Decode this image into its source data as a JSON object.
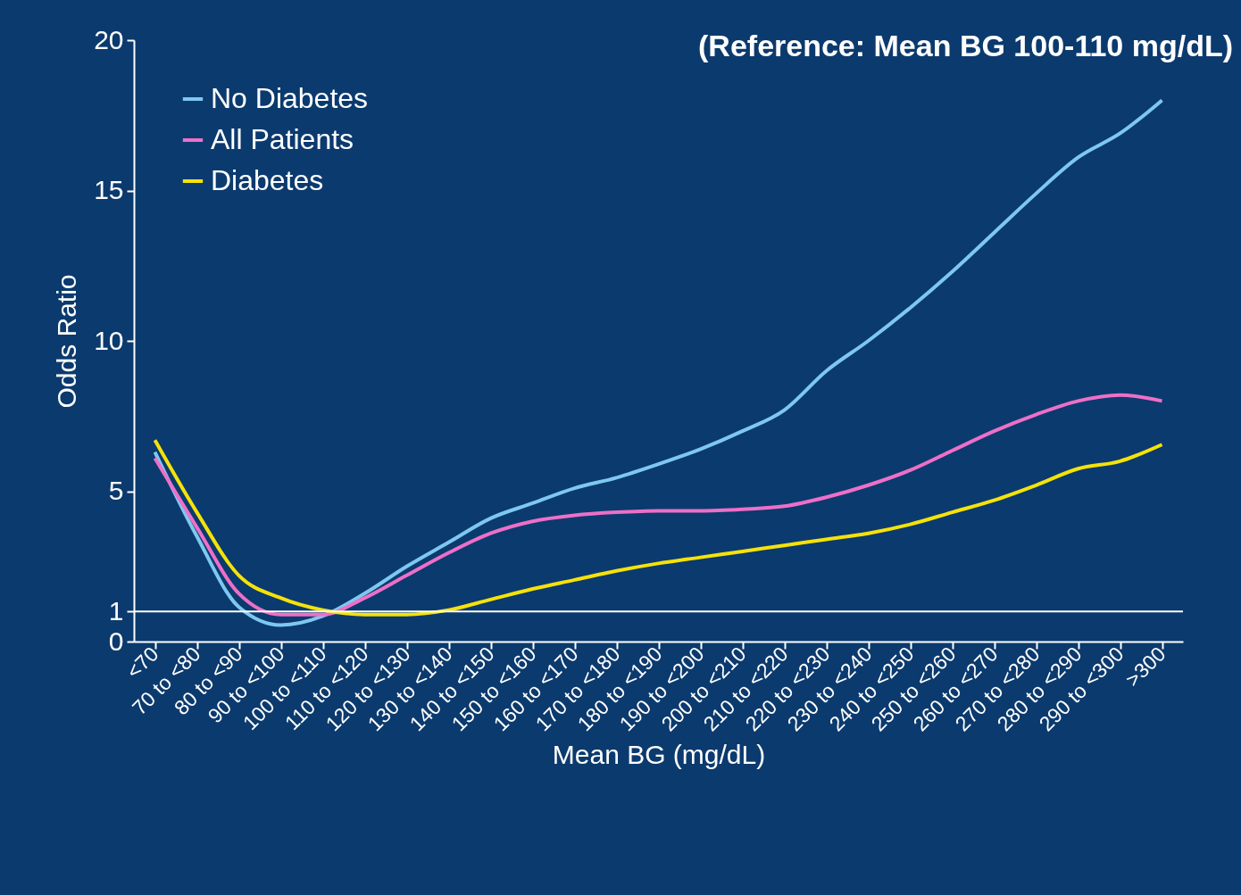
{
  "chart_data": {
    "type": "line",
    "xlabel": "Mean BG (mg/dL)",
    "ylabel": "Odds Ratio",
    "annotations": [
      "(Reference: Mean BG 100-110 mg/dL)"
    ],
    "categories": [
      "<70",
      "70 to <80",
      "80 to <90",
      "90 to <100",
      "100 to <110",
      "110 to <120",
      "120 to <130",
      "130 to <140",
      "140 to <150",
      "150 to <160",
      "160 to <170",
      "170 to <180",
      "180 to <190",
      "190 to <200",
      "200 to <210",
      "210 to <220",
      "220 to <230",
      "230 to <240",
      "240 to <250",
      "250 to <260",
      "260 to <270",
      "270 to <280",
      "280 to <290",
      "290 to <300",
      ">300"
    ],
    "series": [
      {
        "name": "No Diabetes",
        "color": "#7ec8f0",
        "values": [
          6.3,
          3.5,
          1.15,
          0.55,
          0.85,
          1.6,
          2.5,
          3.3,
          4.1,
          4.6,
          5.1,
          5.45,
          5.9,
          6.4,
          7.0,
          7.7,
          9.0,
          10.0,
          11.1,
          12.3,
          13.6,
          14.9,
          16.1,
          16.9,
          18.0
        ]
      },
      {
        "name": "All Patients",
        "color": "#ee6fc8",
        "values": [
          6.1,
          3.8,
          1.6,
          0.9,
          0.9,
          1.45,
          2.2,
          2.95,
          3.6,
          4.0,
          4.2,
          4.3,
          4.35,
          4.35,
          4.4,
          4.5,
          4.8,
          5.2,
          5.7,
          6.35,
          7.0,
          7.55,
          8.0,
          8.2,
          8.0
        ]
      },
      {
        "name": "Diabetes",
        "color": "#f5e20a",
        "values": [
          6.7,
          4.3,
          2.2,
          1.45,
          1.05,
          0.9,
          0.9,
          1.05,
          1.4,
          1.75,
          2.05,
          2.35,
          2.6,
          2.8,
          3.0,
          3.2,
          3.4,
          3.6,
          3.9,
          4.3,
          4.7,
          5.2,
          5.75,
          6.0,
          6.55
        ]
      }
    ],
    "ylim": [
      0,
      20
    ],
    "yticks": [
      0,
      1,
      5,
      10,
      15,
      20
    ],
    "ref_lines": [
      {
        "axis": "y",
        "value": 1,
        "color": "#ffffff"
      }
    ],
    "legend": "top left",
    "grid": false,
    "marker": "none",
    "line_style": "solid"
  }
}
